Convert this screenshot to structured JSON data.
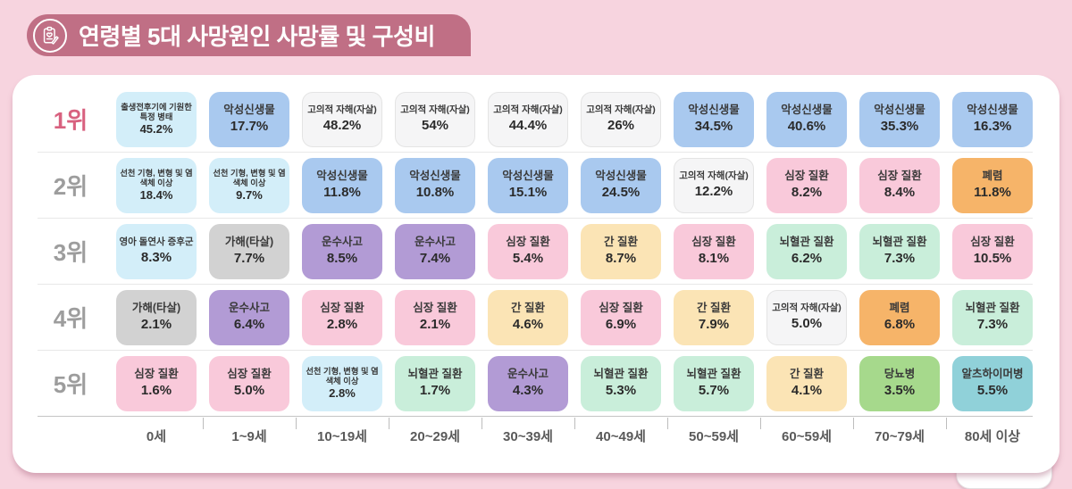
{
  "chart_data": {
    "type": "table",
    "title": "연령별 5대 사망원인 사망률 및 구성비",
    "columns": [
      "0세",
      "1~9세",
      "10~19세",
      "20~29세",
      "30~39세",
      "40~49세",
      "50~59세",
      "60~59세",
      "70~79세",
      "80세 이상"
    ],
    "rows": [
      {
        "rank": "1위",
        "cells": [
          {
            "cause": "출생전후기에 기원한 특정 병태",
            "value": "45.2%",
            "color": "cyan"
          },
          {
            "cause": "악성신생물",
            "value": "17.7%",
            "color": "blue"
          },
          {
            "cause": "고의적 자해(자살)",
            "value": "48.2%",
            "color": "white"
          },
          {
            "cause": "고의적 자해(자살)",
            "value": "54%",
            "color": "white"
          },
          {
            "cause": "고의적 자해(자살)",
            "value": "44.4%",
            "color": "white"
          },
          {
            "cause": "고의적 자해(자살)",
            "value": "26%",
            "color": "white"
          },
          {
            "cause": "악성신생물",
            "value": "34.5%",
            "color": "blue"
          },
          {
            "cause": "악성신생물",
            "value": "40.6%",
            "color": "blue"
          },
          {
            "cause": "악성신생물",
            "value": "35.3%",
            "color": "blue"
          },
          {
            "cause": "악성신생물",
            "value": "16.3%",
            "color": "blue"
          }
        ]
      },
      {
        "rank": "2위",
        "cells": [
          {
            "cause": "선천 기형, 변형 및 염색체 이상",
            "value": "18.4%",
            "color": "cyan"
          },
          {
            "cause": "선천 기형, 변형 및 염색체 이상",
            "value": "9.7%",
            "color": "cyan"
          },
          {
            "cause": "악성신생물",
            "value": "11.8%",
            "color": "blue"
          },
          {
            "cause": "악성신생물",
            "value": "10.8%",
            "color": "blue"
          },
          {
            "cause": "악성신생물",
            "value": "15.1%",
            "color": "blue"
          },
          {
            "cause": "악성신생물",
            "value": "24.5%",
            "color": "blue"
          },
          {
            "cause": "고의적 자해(자살)",
            "value": "12.2%",
            "color": "white"
          },
          {
            "cause": "심장 질환",
            "value": "8.2%",
            "color": "pink"
          },
          {
            "cause": "심장 질환",
            "value": "8.4%",
            "color": "pink"
          },
          {
            "cause": "폐렴",
            "value": "11.8%",
            "color": "orange"
          }
        ]
      },
      {
        "rank": "3위",
        "cells": [
          {
            "cause": "영아 돌연사 증후군",
            "value": "8.3%",
            "color": "cyan"
          },
          {
            "cause": "가해(타살)",
            "value": "7.7%",
            "color": "gray"
          },
          {
            "cause": "운수사고",
            "value": "8.5%",
            "color": "purple"
          },
          {
            "cause": "운수사고",
            "value": "7.4%",
            "color": "purple"
          },
          {
            "cause": "심장 질환",
            "value": "5.4%",
            "color": "pink"
          },
          {
            "cause": "간 질환",
            "value": "8.7%",
            "color": "cream"
          },
          {
            "cause": "심장 질환",
            "value": "8.1%",
            "color": "pink"
          },
          {
            "cause": "뇌혈관 질환",
            "value": "6.2%",
            "color": "mint"
          },
          {
            "cause": "뇌혈관 질환",
            "value": "7.3%",
            "color": "mint"
          },
          {
            "cause": "심장 질환",
            "value": "10.5%",
            "color": "pink"
          }
        ]
      },
      {
        "rank": "4위",
        "cells": [
          {
            "cause": "가해(타살)",
            "value": "2.1%",
            "color": "gray"
          },
          {
            "cause": "운수사고",
            "value": "6.4%",
            "color": "purple"
          },
          {
            "cause": "심장 질환",
            "value": "2.8%",
            "color": "pink"
          },
          {
            "cause": "심장 질환",
            "value": "2.1%",
            "color": "pink"
          },
          {
            "cause": "간 질환",
            "value": "4.6%",
            "color": "cream"
          },
          {
            "cause": "심장 질환",
            "value": "6.9%",
            "color": "pink"
          },
          {
            "cause": "간 질환",
            "value": "7.9%",
            "color": "cream"
          },
          {
            "cause": "고의적 자해(자살)",
            "value": "5.0%",
            "color": "white"
          },
          {
            "cause": "폐렴",
            "value": "6.8%",
            "color": "orange"
          },
          {
            "cause": "뇌혈관 질환",
            "value": "7.3%",
            "color": "mint"
          }
        ]
      },
      {
        "rank": "5위",
        "cells": [
          {
            "cause": "심장 질환",
            "value": "1.6%",
            "color": "pink"
          },
          {
            "cause": "심장 질환",
            "value": "5.0%",
            "color": "pink"
          },
          {
            "cause": "선천 기형, 변형 및 염색체 이상",
            "value": "2.8%",
            "color": "cyan"
          },
          {
            "cause": "뇌혈관 질환",
            "value": "1.7%",
            "color": "mint"
          },
          {
            "cause": "운수사고",
            "value": "4.3%",
            "color": "purple"
          },
          {
            "cause": "뇌혈관 질환",
            "value": "5.3%",
            "color": "mint"
          },
          {
            "cause": "뇌혈관 질환",
            "value": "5.7%",
            "color": "mint"
          },
          {
            "cause": "간 질환",
            "value": "4.1%",
            "color": "cream"
          },
          {
            "cause": "당뇨병",
            "value": "3.5%",
            "color": "green"
          },
          {
            "cause": "알츠하이머병",
            "value": "5.5%",
            "color": "teal"
          }
        ]
      }
    ]
  },
  "palette": {
    "cyan": {
      "bg": "#d3eef9"
    },
    "blue": {
      "bg": "#a9c9ef"
    },
    "white": {
      "bg": "#f5f5f6",
      "border": "#e4e4e4"
    },
    "pink": {
      "bg": "#f9c9da"
    },
    "orange": {
      "bg": "#f6b469"
    },
    "purple": {
      "bg": "#b29bd5"
    },
    "cream": {
      "bg": "#fbe4b5"
    },
    "mint": {
      "bg": "#c9eeda"
    },
    "gray": {
      "bg": "#d2d2d2"
    },
    "green": {
      "bg": "#a6d98c"
    },
    "teal": {
      "bg": "#90d1d9"
    }
  },
  "theme": {
    "page_bg": "#f7d4df",
    "banner_bg": "#c06f85",
    "rank1_color": "#d8617f",
    "rank_color": "#9d9d9d"
  }
}
